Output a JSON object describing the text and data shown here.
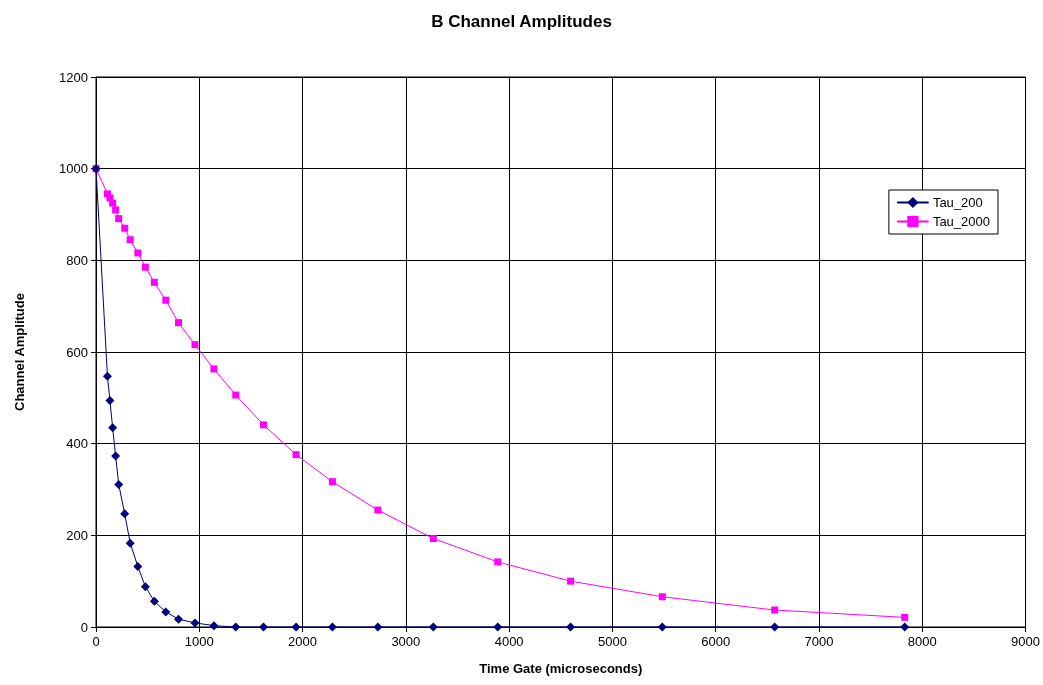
{
  "chart_data": {
    "type": "line",
    "title": "B Channel Amplitudes",
    "xlabel": "Time Gate (microseconds)",
    "ylabel": "Channel Amplitude",
    "x": [
      0,
      111,
      135,
      161,
      190,
      220,
      278,
      331,
      405,
      478,
      565,
      676,
      799,
      958,
      1142,
      1353,
      1622,
      1937,
      2289,
      2729,
      3266,
      3890,
      4595,
      5483,
      6571,
      7830
    ],
    "series": [
      {
        "name": "Tau_200",
        "color": "#000080",
        "marker": "diamond",
        "values": [
          1000,
          547,
          494,
          435,
          373,
          311,
          247,
          183,
          132,
          88,
          56,
          33,
          17,
          9,
          3,
          0,
          0,
          0,
          0,
          0,
          0,
          0,
          0,
          0,
          0,
          0
        ]
      },
      {
        "name": "Tau_2000",
        "color": "#ff00ff",
        "marker": "square",
        "values": [
          1000,
          945,
          936,
          925,
          910,
          891,
          870,
          845,
          816,
          785,
          752,
          713,
          664,
          616,
          563,
          506,
          441,
          376,
          317,
          255,
          193,
          142,
          100,
          66,
          37,
          21
        ]
      }
    ],
    "xlim": [
      0,
      9000
    ],
    "xticks": [
      0,
      1000,
      2000,
      3000,
      4000,
      5000,
      6000,
      7000,
      8000,
      9000
    ],
    "ylim": [
      0,
      1200
    ],
    "yticks": [
      0,
      200,
      400,
      600,
      800,
      1000,
      1200
    ],
    "grid": true,
    "legend": "right",
    "line_style": "solid"
  }
}
